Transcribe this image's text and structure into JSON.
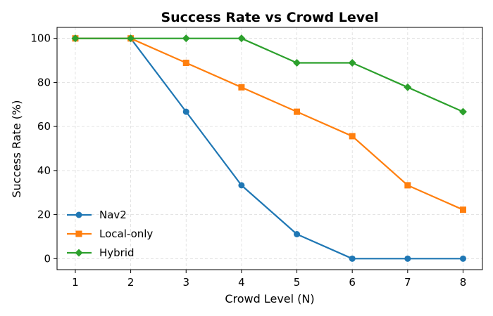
{
  "chart_data": {
    "type": "line",
    "title": "Success Rate vs Crowd Level",
    "xlabel": "Crowd Level (N)",
    "ylabel": "Success Rate (%)",
    "x": [
      1,
      2,
      3,
      4,
      5,
      6,
      7,
      8
    ],
    "xlim": [
      0.67,
      8.35
    ],
    "ylim": [
      -5,
      105
    ],
    "xticks": [
      1,
      2,
      3,
      4,
      5,
      6,
      7,
      8
    ],
    "yticks": [
      0,
      20,
      40,
      60,
      80,
      100
    ],
    "grid": true,
    "legend_position": "lower-left",
    "series": [
      {
        "name": "Nav2",
        "color": "#1f77b4",
        "marker": "circle",
        "values": [
          100,
          100,
          66.7,
          33.3,
          11.1,
          0,
          0,
          0
        ]
      },
      {
        "name": "Local-only",
        "color": "#ff7f0e",
        "marker": "square",
        "values": [
          100,
          100,
          88.9,
          77.8,
          66.7,
          55.6,
          33.3,
          22.2
        ]
      },
      {
        "name": "Hybrid",
        "color": "#2ca02c",
        "marker": "diamond",
        "values": [
          100,
          100,
          100,
          100,
          88.9,
          88.9,
          77.8,
          66.7
        ]
      }
    ]
  }
}
